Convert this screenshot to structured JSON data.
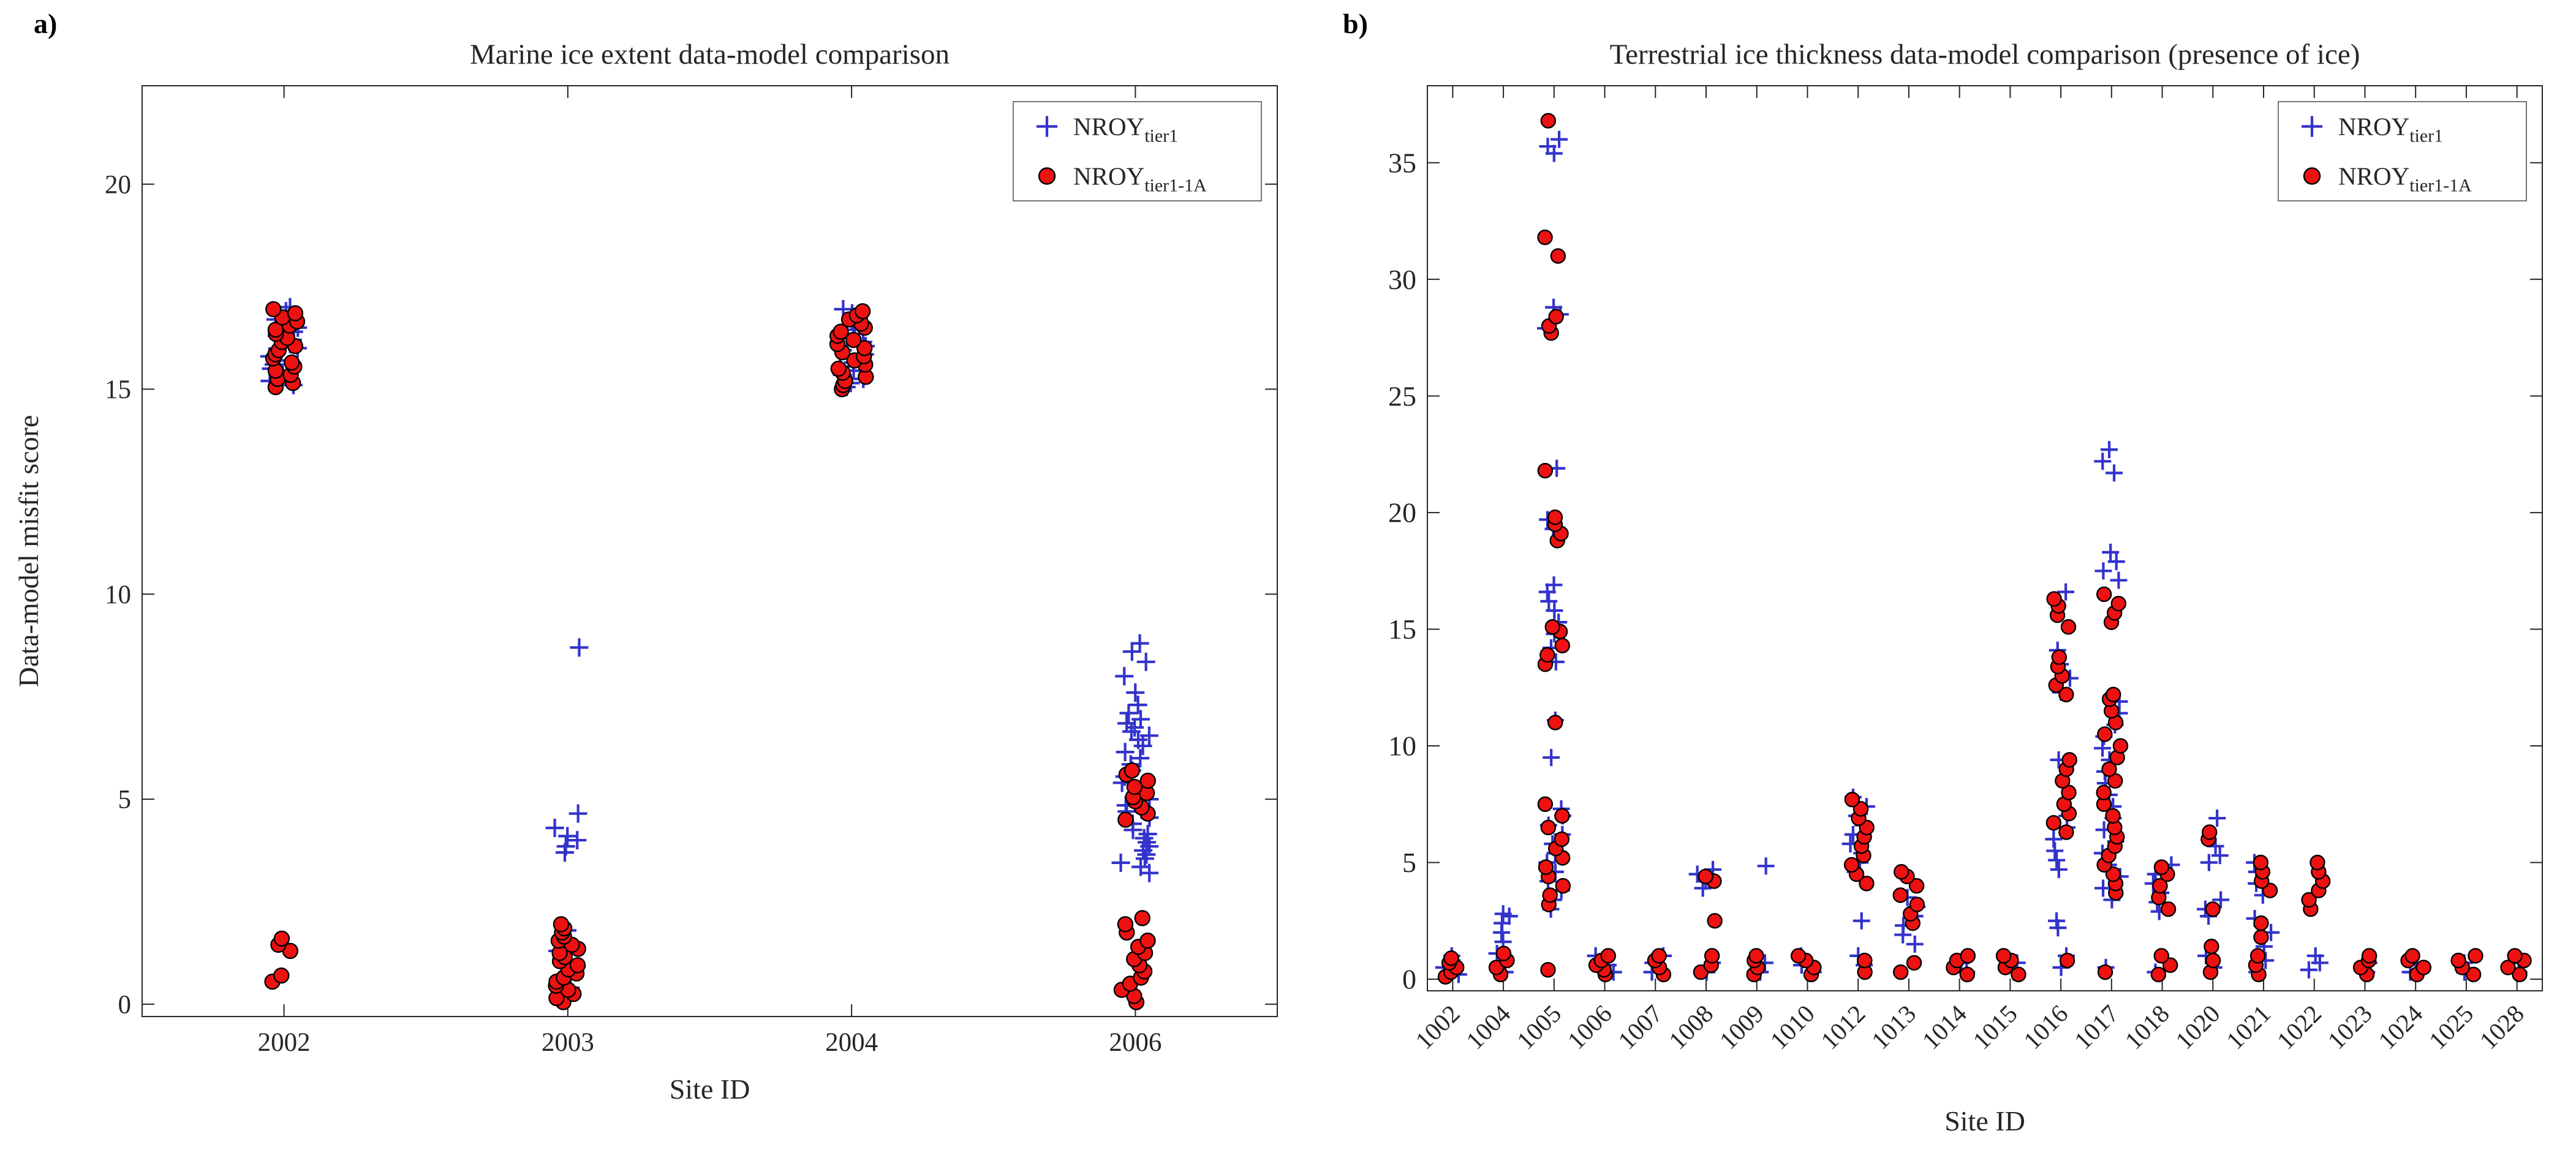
{
  "panels": [
    {
      "letter": "a)"
    },
    {
      "letter": "b)"
    }
  ],
  "colors": {
    "tier1": "#3333cc",
    "tier1_1a_fill": "#ee1111",
    "tier1_1a_edge": "#000000",
    "axis": "#262626",
    "background": "#ffffff"
  },
  "chart_data": [
    {
      "type": "scatter",
      "panel": "a",
      "title": "Marine ice extent data-model comparison",
      "xlabel": "Site ID",
      "ylabel": "Data-model misfit score",
      "categories": [
        "2002",
        "2003",
        "2004",
        "2006"
      ],
      "ylim": [
        -0.3,
        22.4
      ],
      "yticks": [
        0,
        5,
        10,
        15,
        20
      ],
      "grid": false,
      "legend": {
        "position": "top-right",
        "entries": [
          {
            "label": "NROY",
            "sub": "tier1",
            "marker": "plus",
            "color": "#3333cc"
          },
          {
            "label": "NROY",
            "sub": "tier1-1A",
            "marker": "circle",
            "fill": "#ee1111",
            "edge": "#000000"
          }
        ]
      },
      "series": [
        {
          "name": "NROY_tier1",
          "marker": "plus",
          "color": "#3333cc",
          "values": {
            "2002": [
              15.1,
              15.2,
              15.3,
              15.4,
              15.5,
              15.6,
              15.7,
              15.8,
              15.9,
              16.0,
              16.1,
              16.2,
              16.3,
              16.4,
              16.5,
              16.6,
              16.7,
              16.8,
              16.9,
              17.0
            ],
            "2003": [
              0.4,
              0.9,
              1.3,
              1.8,
              3.7,
              3.85,
              4.0,
              4.1,
              4.3,
              4.65,
              8.7
            ],
            "2004": [
              15.05,
              15.15,
              15.25,
              15.35,
              15.45,
              15.55,
              15.65,
              15.75,
              15.85,
              15.95,
              16.05,
              16.15,
              16.25,
              16.35,
              16.45,
              16.55,
              16.65,
              16.75,
              16.85,
              16.95
            ],
            "2006": [
              3.2,
              3.35,
              3.45,
              3.55,
              3.65,
              3.75,
              3.85,
              3.95,
              4.05,
              4.15,
              4.25,
              4.4,
              4.55,
              4.7,
              4.85,
              5.0,
              5.1,
              5.25,
              5.4,
              5.55,
              5.7,
              5.85,
              6.0,
              6.15,
              6.3,
              6.45,
              6.55,
              6.65,
              6.75,
              6.85,
              6.95,
              7.1,
              7.3,
              7.6,
              8.0,
              8.35,
              8.6,
              8.8
            ]
          }
        },
        {
          "name": "NROY_tier1-1A",
          "marker": "circle",
          "fill": "#ee1111",
          "edge": "#000000",
          "values": {
            "2002": [
              0.55,
              0.7,
              1.3,
              1.45,
              1.6,
              15.05,
              15.15,
              15.25,
              15.35,
              15.45,
              15.55,
              15.65,
              15.75,
              15.85,
              15.95,
              16.05,
              16.15,
              16.25,
              16.35,
              16.45,
              16.55,
              16.65,
              16.75,
              16.85,
              16.95
            ],
            "2003": [
              0.05,
              0.15,
              0.25,
              0.35,
              0.45,
              0.55,
              0.65,
              0.75,
              0.85,
              0.95,
              1.05,
              1.15,
              1.25,
              1.35,
              1.45,
              1.55,
              1.65,
              1.75,
              1.85,
              1.95
            ],
            "2004": [
              15.0,
              15.1,
              15.2,
              15.3,
              15.4,
              15.5,
              15.6,
              15.7,
              15.8,
              15.9,
              16.0,
              16.1,
              16.2,
              16.3,
              16.4,
              16.5,
              16.6,
              16.7,
              16.8,
              16.9
            ],
            "2006": [
              0.05,
              0.2,
              0.35,
              0.5,
              0.65,
              0.8,
              0.95,
              1.1,
              1.25,
              1.4,
              1.55,
              1.75,
              1.95,
              2.1,
              4.5,
              4.65,
              4.8,
              4.95,
              5.05,
              5.15,
              5.3,
              5.45,
              5.6,
              5.7
            ]
          }
        }
      ]
    },
    {
      "type": "scatter",
      "panel": "b",
      "title": "Terrestrial ice thickness data-model comparison (presence of ice)",
      "xlabel": "Site ID",
      "ylabel": "",
      "categories": [
        "1002",
        "1004",
        "1005",
        "1006",
        "1007",
        "1008",
        "1009",
        "1010",
        "1012",
        "1013",
        "1014",
        "1015",
        "1016",
        "1017",
        "1018",
        "1020",
        "1021",
        "1022",
        "1023",
        "1024",
        "1025",
        "1028"
      ],
      "ylim": [
        -0.5,
        38.3
      ],
      "yticks": [
        0,
        5,
        10,
        15,
        20,
        25,
        30,
        35
      ],
      "grid": false,
      "legend": {
        "position": "top-right",
        "entries": [
          {
            "label": "NROY",
            "sub": "tier1",
            "marker": "plus",
            "color": "#3333cc"
          },
          {
            "label": "NROY",
            "sub": "tier1-1A",
            "marker": "circle",
            "fill": "#ee1111",
            "edge": "#000000"
          }
        ]
      },
      "series": [
        {
          "name": "NROY_tier1",
          "marker": "plus",
          "color": "#3333cc",
          "values": {
            "1002": [
              0.2,
              0.5,
              0.8,
              1.0
            ],
            "1004": [
              0.3,
              0.7,
              1.1,
              1.6,
              2.0,
              2.4,
              2.7,
              2.8
            ],
            "1005": [
              3.0,
              3.4,
              3.8,
              4.2,
              4.6,
              5.0,
              5.4,
              5.8,
              6.2,
              6.6,
              7.0,
              7.3,
              9.5,
              11.1,
              13.6,
              14.2,
              14.8,
              15.3,
              15.8,
              16.2,
              16.6,
              16.9,
              19.3,
              19.7,
              21.9,
              27.9,
              28.2,
              28.5,
              28.8,
              35.4,
              35.7,
              36.0
            ],
            "1006": [
              0.3,
              0.6,
              1.0
            ],
            "1007": [
              0.3,
              0.7,
              1.0
            ],
            "1008": [
              0.3,
              0.7,
              3.9,
              4.2,
              4.5,
              4.7
            ],
            "1009": [
              0.3,
              0.7,
              4.85
            ],
            "1010": [
              0.3,
              0.6,
              1.0
            ],
            "1012": [
              0.6,
              1.0,
              2.5,
              4.6,
              5.0,
              5.4,
              5.8,
              6.2,
              6.6,
              7.0,
              7.4,
              7.8
            ],
            "1013": [
              1.5,
              1.9,
              2.3,
              2.7,
              3.1,
              3.5
            ],
            "1014": [
              0.3,
              0.7
            ],
            "1015": [
              0.3,
              0.7
            ],
            "1016": [
              0.5,
              1.0,
              2.2,
              2.5,
              4.7,
              5.1,
              5.5,
              6.0,
              6.5,
              7.0,
              9.4,
              12.3,
              12.9,
              13.5,
              14.1,
              16.6
            ],
            "1017": [
              0.5,
              3.4,
              3.9,
              4.4,
              4.9,
              5.4,
              5.9,
              6.4,
              6.9,
              7.4,
              7.9,
              8.4,
              8.9,
              9.4,
              9.9,
              10.4,
              10.9,
              11.4,
              11.9,
              17.1,
              17.5,
              17.9,
              18.3,
              21.7,
              22.2,
              22.7
            ],
            "1018": [
              0.3,
              0.8,
              2.9,
              3.3,
              3.7,
              4.1,
              4.5,
              4.9
            ],
            "1020": [
              0.5,
              1.0,
              2.7,
              3.0,
              3.4,
              5.0,
              5.3,
              5.7,
              6.9
            ],
            "1021": [
              0.3,
              0.8,
              1.4,
              2.0,
              2.6,
              3.6,
              4.1,
              4.6,
              5.0
            ],
            "1022": [
              0.4,
              0.7,
              1.0
            ],
            "1023": [
              0.3,
              0.7
            ],
            "1024": [
              0.3,
              0.7
            ],
            "1025": [
              0.3,
              0.7
            ],
            "1028": [
              0.3,
              0.7
            ]
          }
        },
        {
          "name": "NROY_tier1-1A",
          "marker": "circle",
          "fill": "#ee1111",
          "edge": "#000000",
          "values": {
            "1002": [
              0.1,
              0.3,
              0.5,
              0.7,
              0.9
            ],
            "1004": [
              0.2,
              0.5,
              0.8,
              1.1
            ],
            "1005": [
              0.4,
              3.2,
              3.6,
              4.0,
              4.4,
              4.8,
              5.2,
              5.6,
              6.0,
              6.5,
              7.0,
              7.5,
              11.0,
              13.5,
              13.9,
              14.3,
              14.9,
              15.1,
              18.8,
              19.1,
              19.5,
              19.8,
              21.8,
              27.7,
              28.0,
              28.4,
              31.0,
              31.8,
              36.8
            ],
            "1006": [
              0.2,
              0.4,
              0.6,
              0.8,
              1.0
            ],
            "1007": [
              0.2,
              0.5,
              0.8,
              1.0
            ],
            "1008": [
              0.3,
              0.6,
              1.0,
              2.5,
              4.2,
              4.4
            ],
            "1009": [
              0.2,
              0.5,
              0.8,
              1.0
            ],
            "1010": [
              0.2,
              0.5,
              0.8,
              1.0
            ],
            "1012": [
              0.3,
              0.8,
              4.1,
              4.5,
              4.9,
              5.3,
              5.7,
              6.1,
              6.5,
              6.9,
              7.3,
              7.7
            ],
            "1013": [
              0.3,
              0.7,
              2.4,
              2.8,
              3.2,
              3.6,
              4.0,
              4.4,
              4.6
            ],
            "1014": [
              0.2,
              0.5,
              0.8,
              1.0
            ],
            "1015": [
              0.2,
              0.5,
              0.8,
              1.0
            ],
            "1016": [
              0.8,
              6.3,
              6.7,
              7.1,
              7.5,
              8.0,
              8.5,
              9.0,
              9.4,
              12.2,
              12.6,
              13.0,
              13.4,
              13.8,
              15.1,
              15.6,
              16.0,
              16.3
            ],
            "1017": [
              0.3,
              3.7,
              4.1,
              4.5,
              4.9,
              5.3,
              5.7,
              6.1,
              6.5,
              7.0,
              7.5,
              8.0,
              8.5,
              9.0,
              9.5,
              10.0,
              10.5,
              11.0,
              11.5,
              12.0,
              12.2,
              15.3,
              15.7,
              16.1,
              16.5
            ],
            "1018": [
              0.2,
              0.6,
              1.0,
              3.0,
              3.5,
              4.0,
              4.5,
              4.8
            ],
            "1020": [
              0.3,
              0.8,
              1.4,
              3.0,
              6.0,
              6.3
            ],
            "1021": [
              0.2,
              0.6,
              1.0,
              1.8,
              2.4,
              3.8,
              4.2,
              4.6,
              5.0
            ],
            "1022": [
              3.0,
              3.4,
              3.8,
              4.2,
              4.6,
              5.0
            ],
            "1023": [
              0.2,
              0.5,
              0.8,
              1.0
            ],
            "1024": [
              0.2,
              0.5,
              0.8,
              1.0
            ],
            "1025": [
              0.2,
              0.5,
              0.8,
              1.0
            ],
            "1028": [
              0.2,
              0.5,
              0.8,
              1.0
            ]
          }
        }
      ]
    }
  ]
}
